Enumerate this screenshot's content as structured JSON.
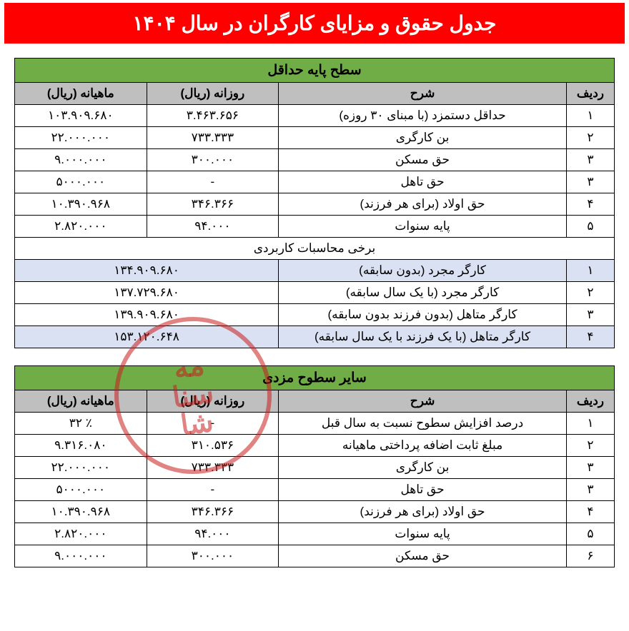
{
  "header": {
    "title": "جدول حقوق و مزایای کارگران در سال ۱۴۰۴"
  },
  "colors": {
    "title_bg": "#ff0000",
    "title_fg": "#ffffff",
    "section_bg": "#70ad47",
    "col_header_bg": "#bfbfbf",
    "blue_row_bg": "#d9e1f2",
    "border": "#000000",
    "watermark": "rgba(200,30,30,0.55)"
  },
  "table1": {
    "section_title": "سطح پایه حداقل",
    "columns": {
      "index": "ردیف",
      "desc": "شرح",
      "daily": "روزانه (ریال)",
      "monthly": "ماهیانه (ریال)"
    },
    "rows": [
      {
        "index": "۱",
        "desc": "حداقل دستمزد (با مبنای ۳۰ روزه)",
        "daily": "۳.۴۶۳.۶۵۶",
        "monthly": "۱۰۳.۹۰۹.۶۸۰"
      },
      {
        "index": "۲",
        "desc": "بن کارگری",
        "daily": "۷۳۳.۳۳۳",
        "monthly": "۲۲.۰۰۰.۰۰۰"
      },
      {
        "index": "۳",
        "desc": "حق مسکن",
        "daily": "۳۰۰.۰۰۰",
        "monthly": "۹.۰۰۰.۰۰۰"
      },
      {
        "index": "۳",
        "desc": "حق تاهل",
        "daily": "-",
        "monthly": "۵۰۰۰.۰۰۰"
      },
      {
        "index": "۴",
        "desc": "حق اولاد (برای هر فرزند)",
        "daily": "۳۴۶.۳۶۶",
        "monthly": "۱۰.۳۹۰.۹۶۸"
      },
      {
        "index": "۵",
        "desc": "پایه سنوات",
        "daily": "۹۴.۰۰۰",
        "monthly": "۲.۸۲۰.۰۰۰"
      }
    ],
    "calc_header": "برخی محاسبات کاربردی",
    "calc_rows": [
      {
        "index": "۱",
        "desc": "کارگر مجرد (بدون سابقه)",
        "value": "۱۳۴.۹۰۹.۶۸۰",
        "blue": true
      },
      {
        "index": "۲",
        "desc": "کارگر مجرد (با یک سال سابقه)",
        "value": "۱۳۷.۷۲۹.۶۸۰",
        "blue": false
      },
      {
        "index": "۳",
        "desc": "کارگر متاهل (بدون فرزند بدون سابقه)",
        "value": "۱۳۹.۹۰۹.۶۸۰",
        "blue": false
      },
      {
        "index": "۴",
        "desc": "کارگر متاهل (با یک فرزند با یک سال سابقه)",
        "value": "۱۵۳.۱۲۰.۶۴۸",
        "blue": true
      }
    ]
  },
  "table2": {
    "section_title": "سایر سطوح مزدی",
    "columns": {
      "index": "ردیف",
      "desc": "شرح",
      "daily": "روزانه (ریال)",
      "monthly": "ماهیانه (ریال)"
    },
    "rows": [
      {
        "index": "۱",
        "desc": "درصد افزایش سطوح نسبت به سال قبل",
        "daily": "-",
        "monthly": "٪ ۳۲"
      },
      {
        "index": "۲",
        "desc": "مبلغ ثابت اضافه پرداختی ماهیانه",
        "daily": "۳۱۰.۵۳۶",
        "monthly": "۹.۳۱۶.۰۸۰"
      },
      {
        "index": "۳",
        "desc": "بن کارگری",
        "daily": "۷۳۳.۳۳۳",
        "monthly": "۲۲.۰۰۰.۰۰۰"
      },
      {
        "index": "۳",
        "desc": "حق تاهل",
        "daily": "-",
        "monthly": "۵۰۰۰.۰۰۰"
      },
      {
        "index": "۴",
        "desc": "حق اولاد (برای هر فرزند)",
        "daily": "۳۴۶.۳۶۶",
        "monthly": "۱۰.۳۹۰.۹۶۸"
      },
      {
        "index": "۵",
        "desc": "پایه سنوات",
        "daily": "۹۴.۰۰۰",
        "monthly": "۲.۸۲۰.۰۰۰"
      },
      {
        "index": "۶",
        "desc": "حق مسکن",
        "daily": "۳۰۰.۰۰۰",
        "monthly": "۹.۰۰۰.۰۰۰"
      }
    ]
  },
  "watermark": {
    "line1": "مه",
    "line2": "سنا",
    "line3": "شا"
  }
}
